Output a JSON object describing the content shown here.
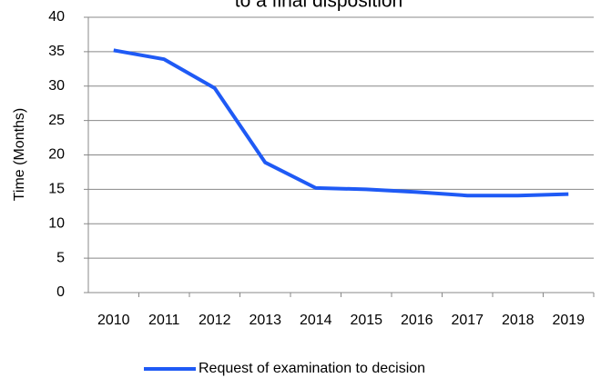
{
  "chart_data": {
    "type": "line",
    "title": "to a final disposition",
    "y_label": "Time (Months)",
    "categories": [
      "2010",
      "2011",
      "2012",
      "2013",
      "2014",
      "2015",
      "2016",
      "2017",
      "2018",
      "2019"
    ],
    "series": [
      {
        "name": "Request of examination to decision",
        "color": "#1f5af5",
        "values": [
          35.2,
          33.9,
          29.7,
          18.9,
          15.2,
          15.0,
          14.6,
          14.1,
          14.1,
          14.3
        ]
      }
    ],
    "ylim": [
      0,
      40
    ],
    "yticks": [
      0,
      5,
      10,
      15,
      20,
      25,
      30,
      35,
      40
    ],
    "grid": true,
    "legend": "bottom"
  }
}
